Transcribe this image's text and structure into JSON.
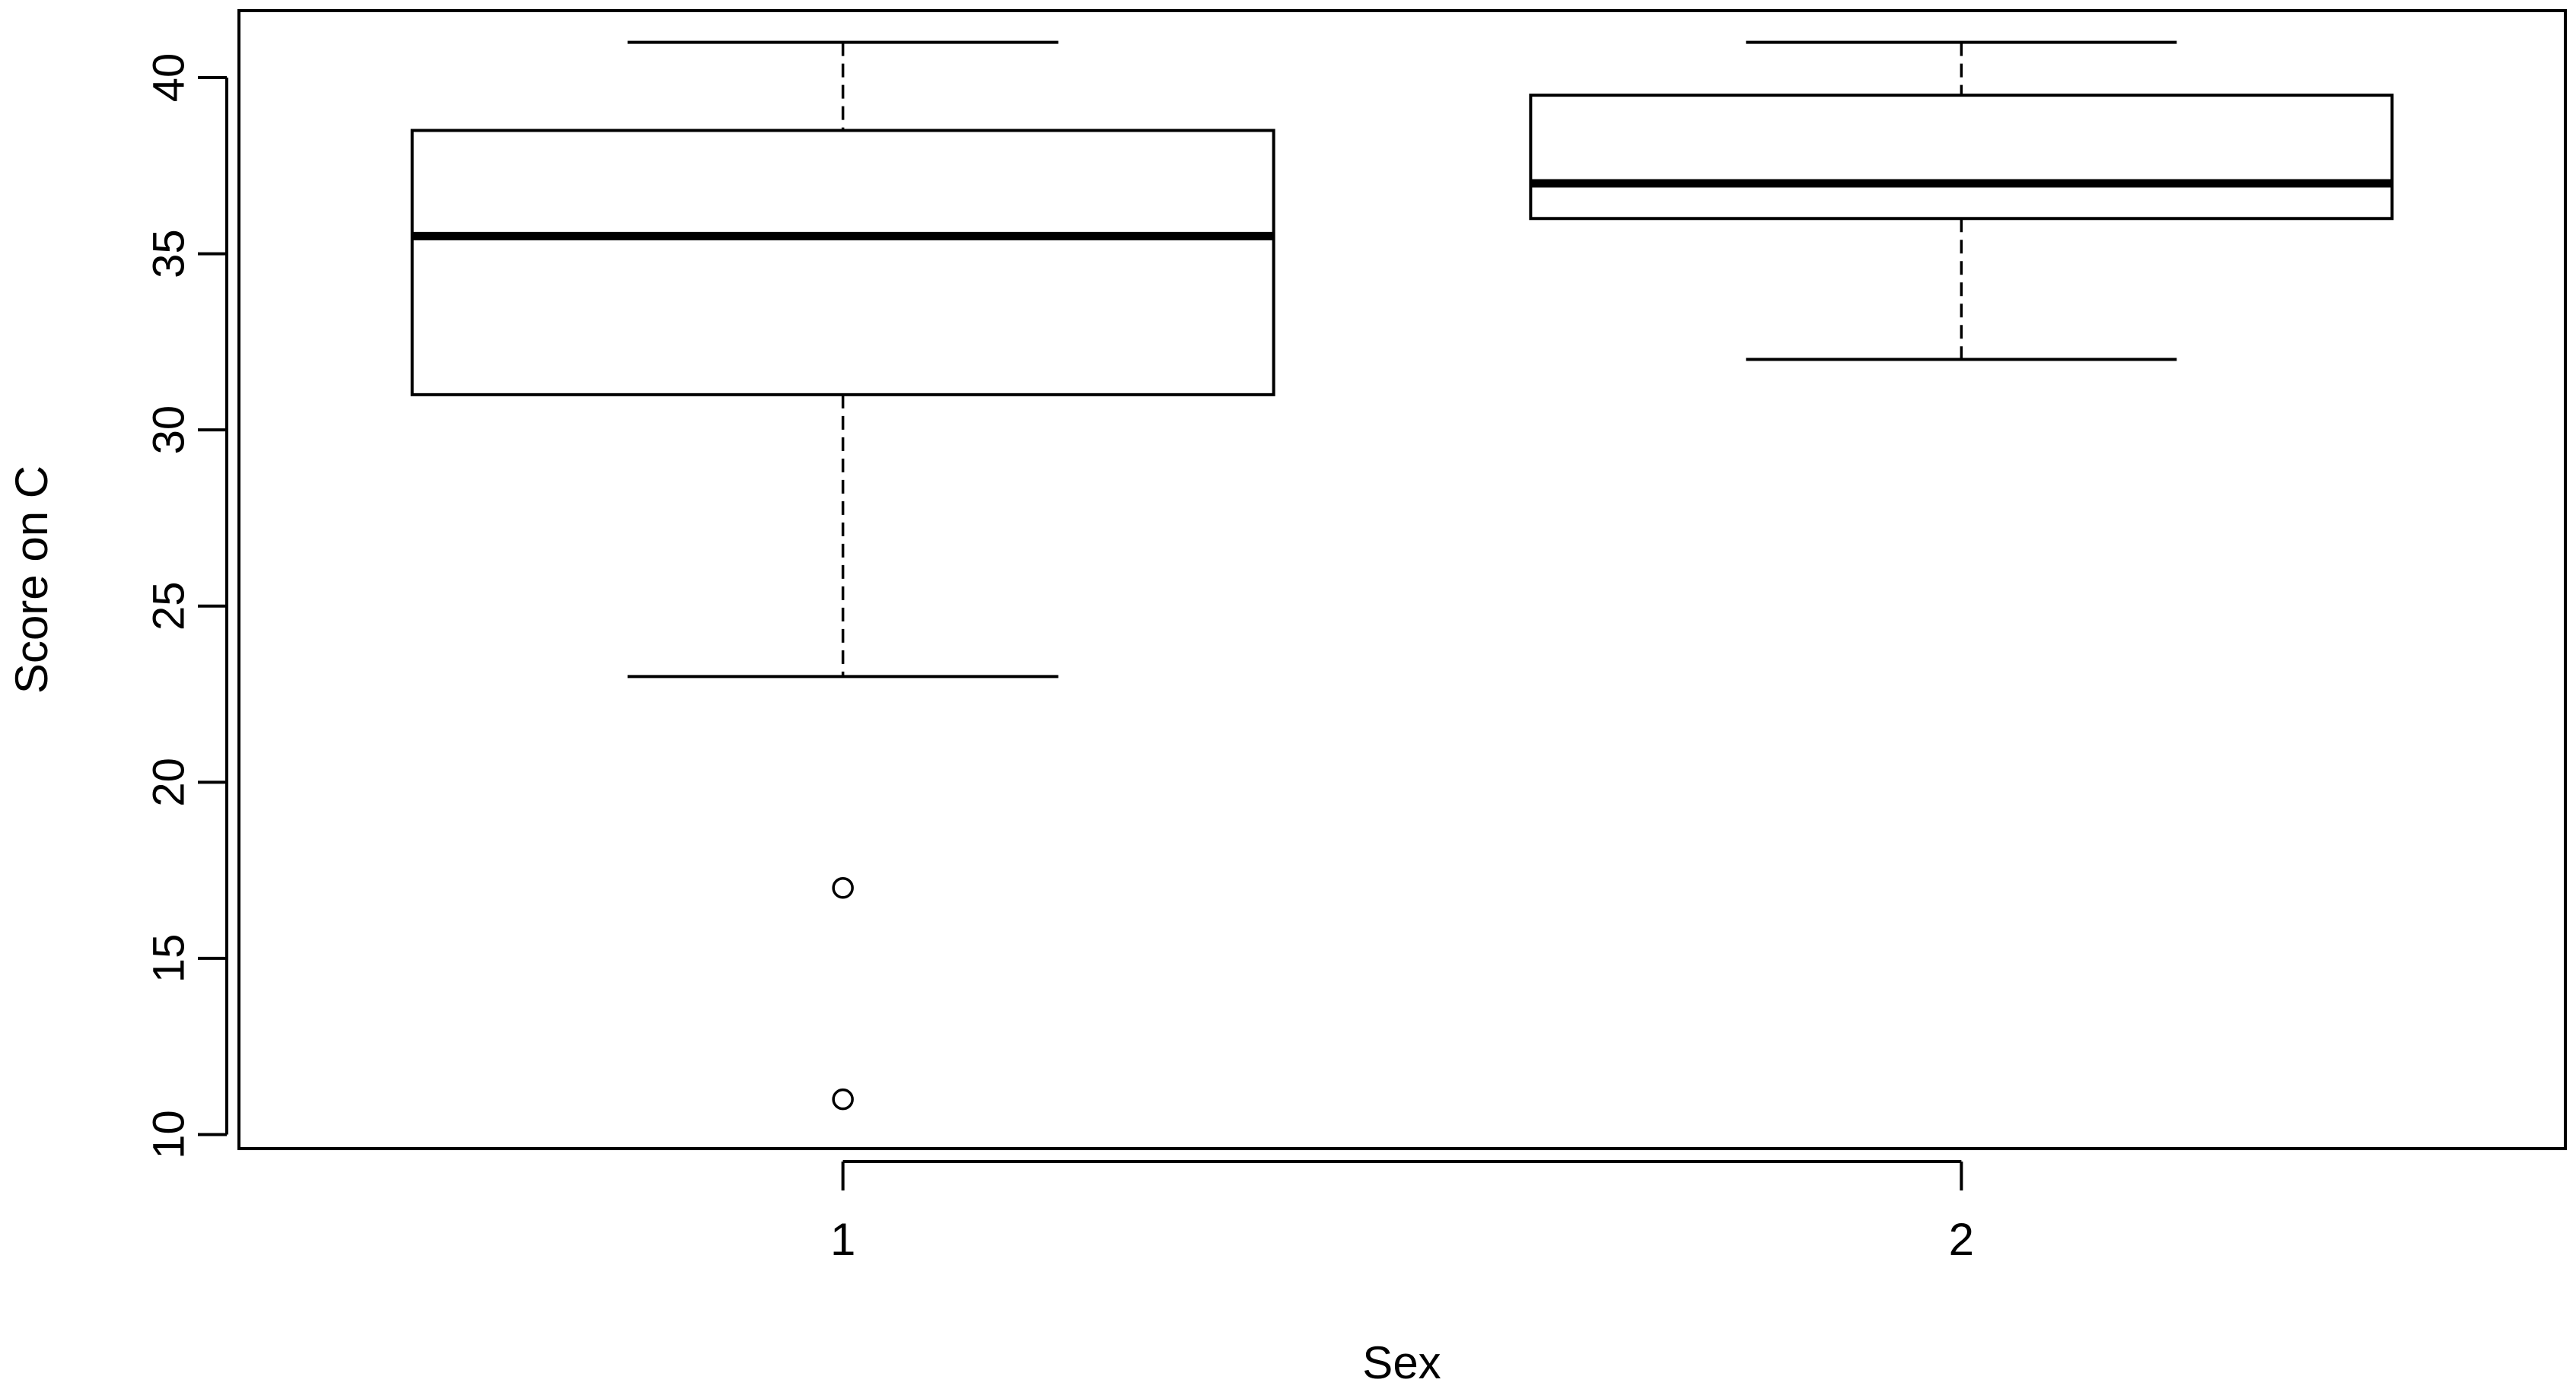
{
  "chart_data": {
    "type": "boxplot",
    "xlabel": "Sex",
    "ylabel": "Score on C",
    "categories": [
      "1",
      "2"
    ],
    "ylim": [
      9.6,
      41.9
    ],
    "yticks": [
      10,
      15,
      20,
      25,
      30,
      35,
      40
    ],
    "grid": false,
    "boxes": [
      {
        "category": "1",
        "whisker_low": 23,
        "q1": 31,
        "median": 35.5,
        "q3": 38.5,
        "whisker_high": 41,
        "outliers": [
          17,
          11
        ]
      },
      {
        "category": "2",
        "whisker_low": 32,
        "q1": 36,
        "median": 37,
        "q3": 39.5,
        "whisker_high": 41,
        "outliers": []
      }
    ]
  }
}
